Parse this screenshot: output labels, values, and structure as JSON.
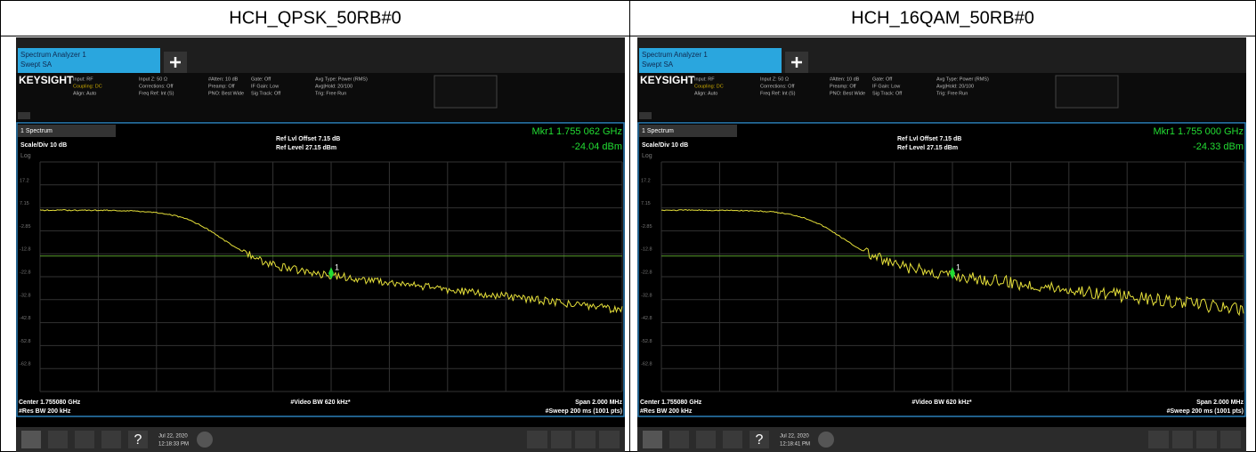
{
  "header": {
    "cells": [
      "HCH_QPSK_50RB#0",
      "HCH_16QAM_50RB#0"
    ]
  },
  "panels": [
    {
      "tab": [
        "Spectrum Analyzer 1",
        "Swept SA"
      ],
      "brand": "KEYSIGHT",
      "settings": [
        "Input: RF",
        "Coupling: DC",
        "Align: Auto",
        "Input Z: 50 Ω",
        "Corrections: Off",
        "Freq Ref: Int (S)",
        "#Atten: 10 dB",
        "Preamp: Off",
        "PNO: Best Wide",
        "Gate: Off",
        "IF Gain: Low",
        "Sig Track: Off",
        "Avg Type: Power (RMS)",
        "Avg|Hold: 20/100",
        "Trig: Free Run"
      ],
      "window": "1 Spectrum",
      "scale": "Scale/Div 10 dB",
      "log": "Log",
      "ref_offset": "Ref Lvl Offset 7.15 dB",
      "ref_level": "Ref Level 27.15 dBm",
      "marker_freq": "Mkr1 1.755 062 GHz",
      "marker_amp": "-24.04 dBm",
      "y_labels": [
        "17.2",
        "7.15",
        "-2.85",
        "-12.8",
        "-22.8",
        "-32.8",
        "-42.8",
        "-52.8",
        "-62.8"
      ],
      "marker_label": "1",
      "center": "Center 1.755080 GHz",
      "res_bw": "#Res BW 200 kHz",
      "video_bw": "#Video BW 620 kHz*",
      "span": "Span 2.000 MHz",
      "sweep": "#Sweep 200 ms (1001 pts)",
      "date": "Jul 22, 2020",
      "time": "12:18:33 PM"
    },
    {
      "tab": [
        "Spectrum Analyzer 1",
        "Swept SA"
      ],
      "brand": "KEYSIGHT",
      "settings": [
        "Input: RF",
        "Coupling: DC",
        "Align: Auto",
        "Input Z: 50 Ω",
        "Corrections: Off",
        "Freq Ref: Int (S)",
        "#Atten: 10 dB",
        "Preamp: Off",
        "PNO: Best Wide",
        "Gate: Off",
        "IF Gain: Low",
        "Sig Track: Off",
        "Avg Type: Power (RMS)",
        "Avg|Hold: 20/100",
        "Trig: Free Run"
      ],
      "window": "1 Spectrum",
      "scale": "Scale/Div 10 dB",
      "log": "Log",
      "ref_offset": "Ref Lvl Offset 7.15 dB",
      "ref_level": "Ref Level 27.15 dBm",
      "marker_freq": "Mkr1 1.755 000 GHz",
      "marker_amp": "-24.33 dBm",
      "y_labels": [
        "17.2",
        "7.15",
        "-2.85",
        "-12.8",
        "-22.8",
        "-32.8",
        "-42.8",
        "-52.8",
        "-62.8"
      ],
      "marker_label": "1",
      "center": "Center 1.755080 GHz",
      "res_bw": "#Res BW 200 kHz",
      "video_bw": "#Video BW 620 kHz*",
      "span": "Span 2.000 MHz",
      "sweep": "#Sweep 200 ms (1001 pts)",
      "date": "Jul 22, 2020",
      "time": "12:18:41 PM"
    }
  ]
}
